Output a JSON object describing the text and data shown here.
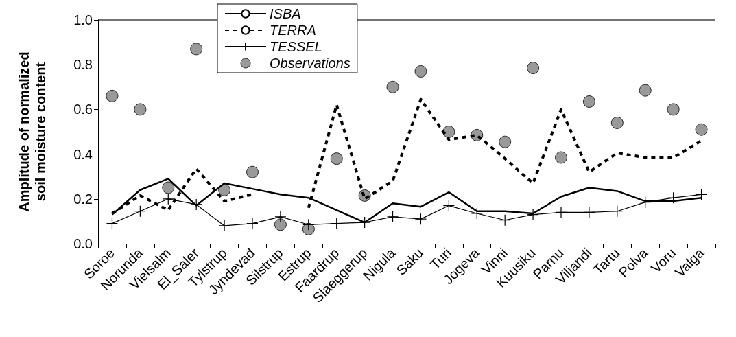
{
  "chart_data": {
    "type": "line",
    "ylabel": "Amplitude of normalized\nsoil moisture content",
    "categories": [
      "Soroe",
      "Norunda",
      "Vielsalm",
      "El_Saler",
      "Tylstrup",
      "Jyndevad",
      "Silstrup",
      "Estrup",
      "Faardrup",
      "Slaeggerup",
      "Nigula",
      "Saku",
      "Turi",
      "Jogeva",
      "Vinni",
      "Kuusiku",
      "Parnu",
      "Viljandi",
      "Tartu",
      "Polva",
      "Voru",
      "Valga"
    ],
    "series": [
      {
        "name": "ISBA",
        "color": "#000000",
        "line_style": "solid",
        "marker": "none",
        "values": [
          0.13,
          0.24,
          0.29,
          0.17,
          0.27,
          0.245,
          0.22,
          0.205,
          0.15,
          0.095,
          0.18,
          0.165,
          0.23,
          0.145,
          0.145,
          0.135,
          0.21,
          0.25,
          0.235,
          0.19,
          0.19,
          0.205
        ]
      },
      {
        "name": "TERRA",
        "color": "#000000",
        "line_style": "dashed",
        "marker": "none",
        "values": [
          0.135,
          0.215,
          0.15,
          0.335,
          0.19,
          0.22,
          null,
          0.16,
          0.62,
          0.2,
          0.28,
          0.645,
          0.465,
          0.485,
          0.38,
          0.27,
          0.6,
          0.32,
          0.405,
          0.385,
          0.385,
          0.46
        ]
      },
      {
        "name": "TESSEL",
        "color": "#000000",
        "line_style": "solid",
        "marker": "cross",
        "values": [
          0.09,
          0.145,
          0.2,
          0.175,
          0.08,
          0.09,
          0.12,
          0.085,
          0.09,
          0.095,
          0.12,
          0.11,
          0.17,
          0.135,
          0.105,
          0.13,
          0.14,
          0.14,
          0.145,
          0.185,
          0.205,
          0.22
        ]
      },
      {
        "name": "Observations",
        "type": "scatter",
        "color": "#808080",
        "marker": "circle",
        "values": [
          0.66,
          0.6,
          0.25,
          0.87,
          0.24,
          0.32,
          0.085,
          0.065,
          0.38,
          0.215,
          0.7,
          0.77,
          0.5,
          0.485,
          0.455,
          0.785,
          0.385,
          0.635,
          0.54,
          0.685,
          0.6,
          0.51
        ]
      }
    ],
    "ylim": [
      0,
      1
    ],
    "yticks": [
      {
        "value": 0,
        "label": "0.0"
      },
      {
        "value": 0.2,
        "label": "0.2"
      },
      {
        "value": 0.4,
        "label": "0.4"
      },
      {
        "value": 0.6,
        "label": "0.6"
      },
      {
        "value": 0.8,
        "label": "0.8"
      },
      {
        "value": 1,
        "label": "1.0"
      }
    ],
    "grid": false,
    "legend": "top left"
  }
}
